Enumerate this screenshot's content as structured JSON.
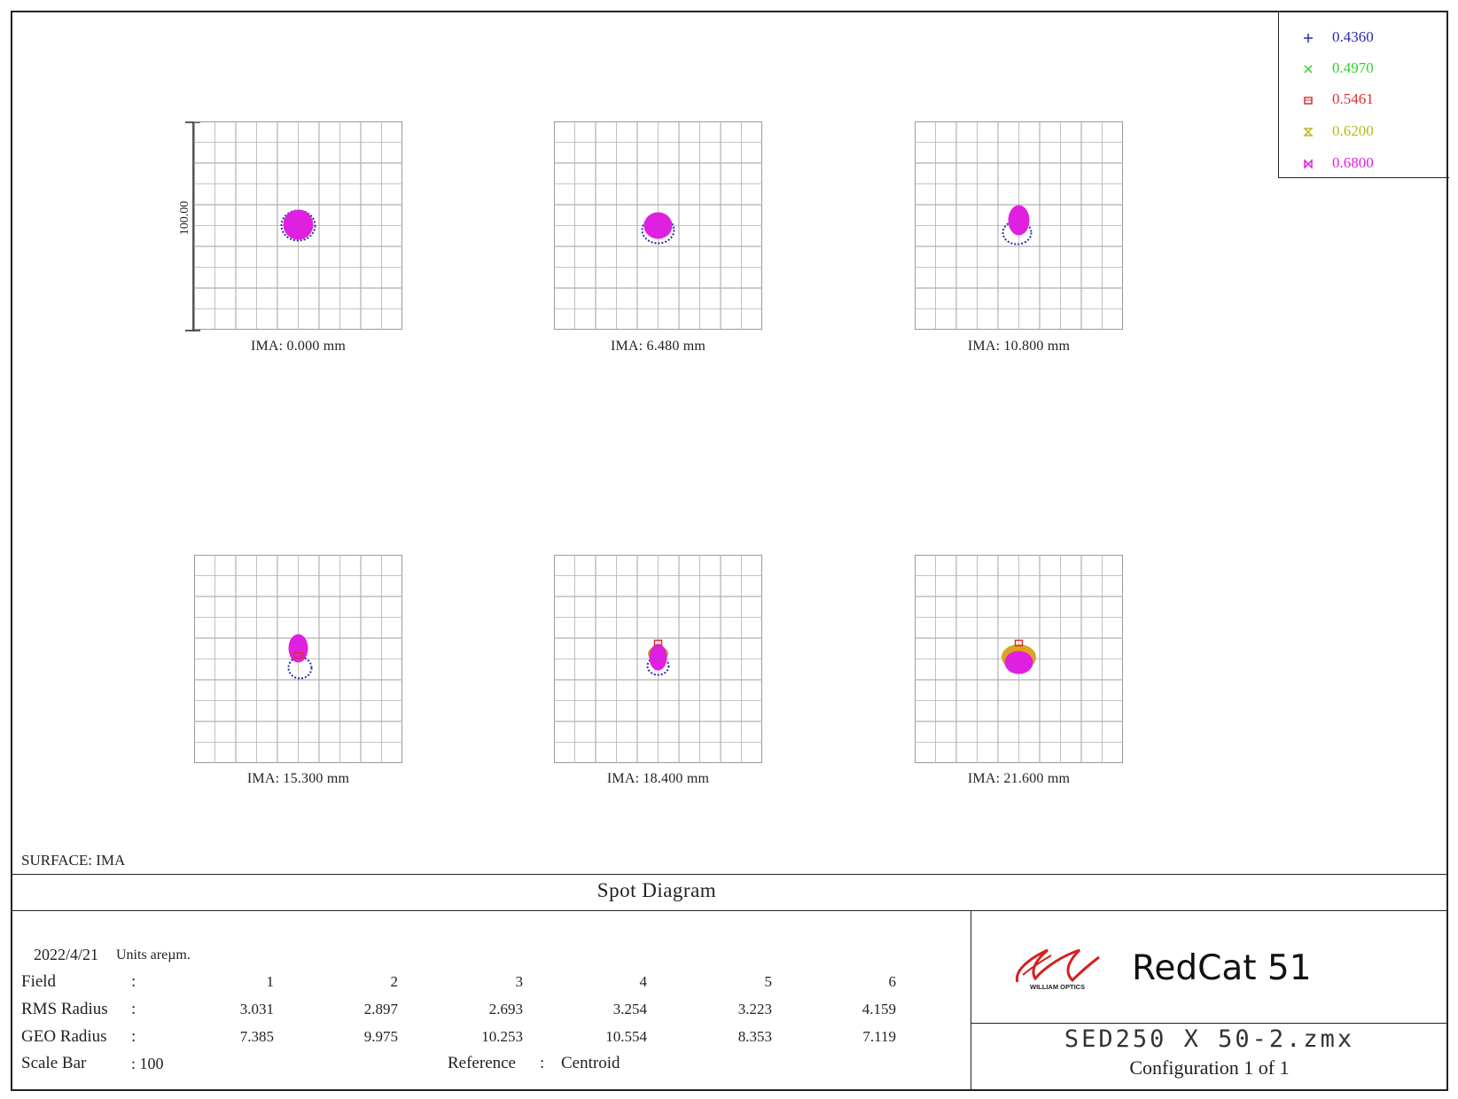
{
  "legend": [
    {
      "value": "0.4360",
      "color": "#2b2ba8",
      "icon": "plus-marker-icon"
    },
    {
      "value": "0.4970",
      "color": "#2fd02f",
      "icon": "x-marker-icon"
    },
    {
      "value": "0.5461",
      "color": "#d83030",
      "icon": "square-marker-icon"
    },
    {
      "value": "0.6200",
      "color": "#b8b820",
      "icon": "hourglass-marker-icon"
    },
    {
      "value": "0.6800",
      "color": "#e020e0",
      "icon": "bowtie-marker-icon"
    }
  ],
  "scale_label": "100.00",
  "panels": [
    {
      "label": "IMA: 0.000 mm"
    },
    {
      "label": "IMA: 6.480 mm"
    },
    {
      "label": "IMA: 10.800 mm"
    },
    {
      "label": "IMA: 15.300 mm"
    },
    {
      "label": "IMA: 18.400 mm"
    },
    {
      "label": "IMA: 21.600 mm"
    }
  ],
  "surface_label": "SURFACE: IMA",
  "title": "Spot Diagram",
  "table": {
    "date": "2022/4/21",
    "units": "Units areµm.",
    "field_label": "Field",
    "rms_label": "RMS Radius",
    "geo_label": "GEO Radius",
    "scale_label": "Scale Bar",
    "colon": ":",
    "scale_value": ": 100",
    "reference_label": "Reference",
    "reference_value": "Centroid",
    "fields": [
      "1",
      "2",
      "3",
      "4",
      "5",
      "6"
    ],
    "rms": [
      "3.031",
      "2.897",
      "2.693",
      "3.254",
      "3.223",
      "4.159"
    ],
    "geo": [
      "7.385",
      "9.975",
      "10.253",
      "10.554",
      "8.353",
      "7.119"
    ]
  },
  "brand": {
    "logo_text": "WILLIAM OPTICS",
    "product": "RedCat 51",
    "logo_color": "#d42020"
  },
  "file": {
    "name": "SED250 X 50-2.zmx",
    "config": "Configuration 1 of 1"
  },
  "chart_data": {
    "type": "scatter",
    "title": "Spot Diagram",
    "units": "µm",
    "scale_bar": 100,
    "reference": "Centroid",
    "wavelengths": [
      "0.4360",
      "0.4970",
      "0.5461",
      "0.6200",
      "0.6800"
    ],
    "fields_mm": [
      0.0,
      6.48,
      10.8,
      15.3,
      18.4,
      21.6
    ],
    "rms_radius": [
      3.031,
      2.897,
      2.693,
      3.254,
      3.223,
      4.159
    ],
    "geo_radius": [
      7.385,
      9.975,
      10.253,
      10.554,
      8.353,
      7.119
    ]
  }
}
